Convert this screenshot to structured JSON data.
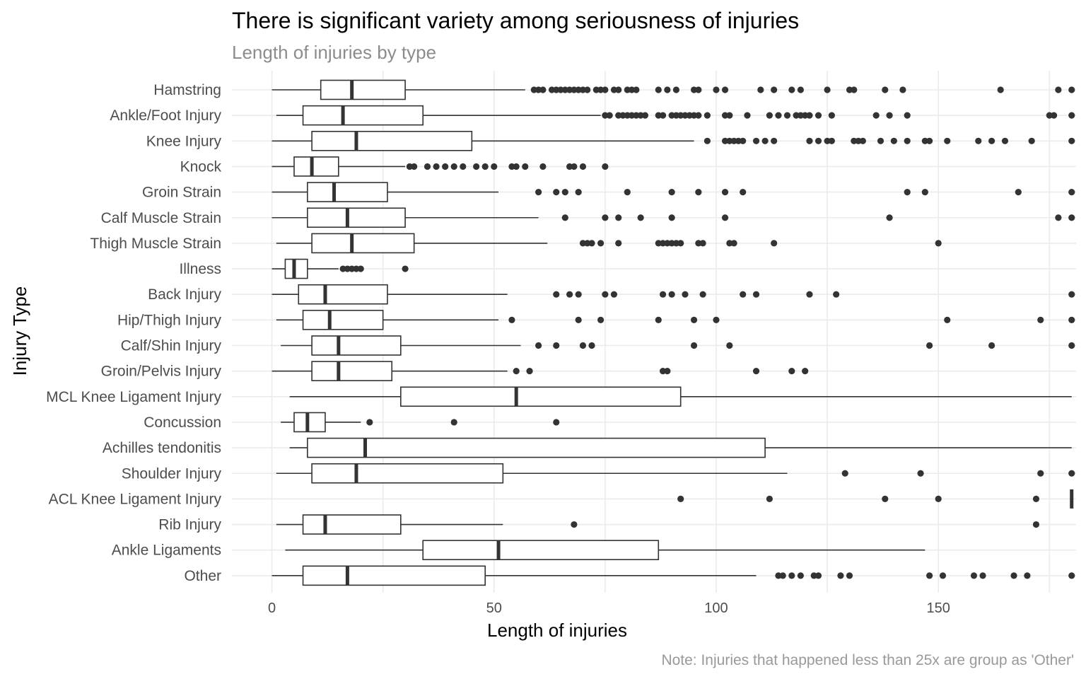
{
  "chart_data": {
    "type": "boxplot",
    "orientation": "horizontal",
    "title": "There is significant variety among seriousness of injuries",
    "subtitle": "Length of injuries by type",
    "caption": "Note: Injuries that happened less than 25x are group as 'Other'",
    "xlabel": "Length of injuries",
    "ylabel": "Injury Type",
    "xlim": [
      -9,
      181
    ],
    "xticks": [
      0,
      50,
      100,
      150
    ],
    "grid": true,
    "legend": "none",
    "colors": {
      "box_stroke": "#333333",
      "grid": "#ebebeb",
      "background": "#ffffff"
    },
    "categories": [
      {
        "label": "Hamstring",
        "min": 0,
        "q1": 11,
        "median": 18,
        "q3": 30,
        "max": 57,
        "outliers": [
          59,
          60,
          61,
          63,
          64,
          65,
          66,
          67,
          68,
          69,
          70,
          71,
          73,
          74,
          75,
          77,
          78,
          80,
          81,
          82,
          87,
          89,
          91,
          95,
          96,
          100,
          102,
          110,
          113,
          117,
          119,
          125,
          130,
          131,
          138,
          142,
          164,
          177,
          180
        ]
      },
      {
        "label": "Ankle/Foot Injury",
        "min": 1,
        "q1": 7,
        "median": 16,
        "q3": 34,
        "max": 74,
        "outliers": [
          75,
          76,
          78,
          79,
          80,
          81,
          82,
          83,
          84,
          87,
          88,
          90,
          91,
          92,
          93,
          94,
          95,
          96,
          98,
          102,
          103,
          107,
          112,
          114,
          116,
          118,
          119,
          120,
          121,
          123,
          126,
          136,
          139,
          143,
          175,
          176,
          180
        ]
      },
      {
        "label": "Knee Injury",
        "min": 0,
        "q1": 9,
        "median": 19,
        "q3": 45,
        "max": 95,
        "outliers": [
          98,
          102,
          103,
          104,
          105,
          106,
          109,
          111,
          113,
          121,
          123,
          125,
          126,
          131,
          132,
          133,
          137,
          140,
          143,
          147,
          148,
          152,
          159,
          162,
          165,
          171,
          180
        ]
      },
      {
        "label": "Knock",
        "min": 0,
        "q1": 5,
        "median": 9,
        "q3": 15,
        "max": 30,
        "outliers": [
          31,
          32,
          35,
          37,
          39,
          41,
          43,
          46,
          48,
          50,
          54,
          55,
          57,
          61,
          67,
          68,
          70,
          75
        ]
      },
      {
        "label": "Groin Strain",
        "min": 0,
        "q1": 8,
        "median": 14,
        "q3": 26,
        "max": 51,
        "outliers": [
          60,
          64,
          66,
          69,
          80,
          90,
          96,
          102,
          106,
          143,
          147,
          168,
          180
        ]
      },
      {
        "label": "Calf Muscle Strain",
        "min": 0,
        "q1": 8,
        "median": 17,
        "q3": 30,
        "max": 60,
        "outliers": [
          66,
          75,
          78,
          83,
          90,
          102,
          139,
          177,
          180
        ]
      },
      {
        "label": "Thigh Muscle Strain",
        "min": 1,
        "q1": 9,
        "median": 18,
        "q3": 32,
        "max": 62,
        "outliers": [
          70,
          71,
          72,
          74,
          78,
          87,
          88,
          89,
          90,
          91,
          92,
          96,
          97,
          103,
          104,
          113,
          150
        ]
      },
      {
        "label": "Illness",
        "min": 0,
        "q1": 3,
        "median": 5,
        "q3": 8,
        "max": 15,
        "outliers": [
          16,
          17,
          18,
          19,
          20,
          30
        ]
      },
      {
        "label": "Back Injury",
        "min": 0,
        "q1": 6,
        "median": 12,
        "q3": 26,
        "max": 53,
        "outliers": [
          64,
          67,
          69,
          75,
          77,
          88,
          90,
          93,
          97,
          106,
          109,
          121,
          127,
          180
        ]
      },
      {
        "label": "Hip/Thigh Injury",
        "min": 1,
        "q1": 7,
        "median": 13,
        "q3": 25,
        "max": 51,
        "outliers": [
          54,
          69,
          74,
          87,
          95,
          100,
          152,
          173,
          180
        ]
      },
      {
        "label": "Calf/Shin Injury",
        "min": 2,
        "q1": 9,
        "median": 15,
        "q3": 29,
        "max": 56,
        "outliers": [
          60,
          64,
          70,
          72,
          95,
          103,
          148,
          162,
          180
        ]
      },
      {
        "label": "Groin/Pelvis Injury",
        "min": 0,
        "q1": 9,
        "median": 15,
        "q3": 27,
        "max": 53,
        "outliers": [
          55,
          58,
          88,
          89,
          109,
          117,
          120
        ]
      },
      {
        "label": "MCL Knee Ligament Injury",
        "min": 4,
        "q1": 29,
        "median": 55,
        "q3": 92,
        "max": 180,
        "outliers": []
      },
      {
        "label": "Concussion",
        "min": 2,
        "q1": 5,
        "median": 8,
        "q3": 12,
        "max": 20,
        "outliers": [
          22,
          41,
          64
        ]
      },
      {
        "label": "Achilles tendonitis",
        "min": 4,
        "q1": 8,
        "median": 21,
        "q3": 111,
        "max": 180,
        "outliers": []
      },
      {
        "label": "Shoulder Injury",
        "min": 1,
        "q1": 9,
        "median": 19,
        "q3": 52,
        "max": 116,
        "outliers": [
          129,
          146,
          173,
          180
        ]
      },
      {
        "label": "ACL Knee Ligament Injury",
        "min": 180,
        "q1": 180,
        "median": 180,
        "q3": 180,
        "max": 180,
        "outliers": [
          92,
          112,
          138,
          150,
          172
        ]
      },
      {
        "label": "Rib Injury",
        "min": 1,
        "q1": 7,
        "median": 12,
        "q3": 29,
        "max": 52,
        "outliers": [
          68,
          172
        ]
      },
      {
        "label": "Ankle Ligaments",
        "min": 3,
        "q1": 34,
        "median": 51,
        "q3": 87,
        "max": 147,
        "outliers": []
      },
      {
        "label": "Other",
        "min": 0,
        "q1": 7,
        "median": 17,
        "q3": 48,
        "max": 109,
        "outliers": [
          114,
          115,
          117,
          119,
          122,
          123,
          128,
          130,
          148,
          151,
          158,
          160,
          167,
          170,
          180
        ]
      }
    ]
  }
}
